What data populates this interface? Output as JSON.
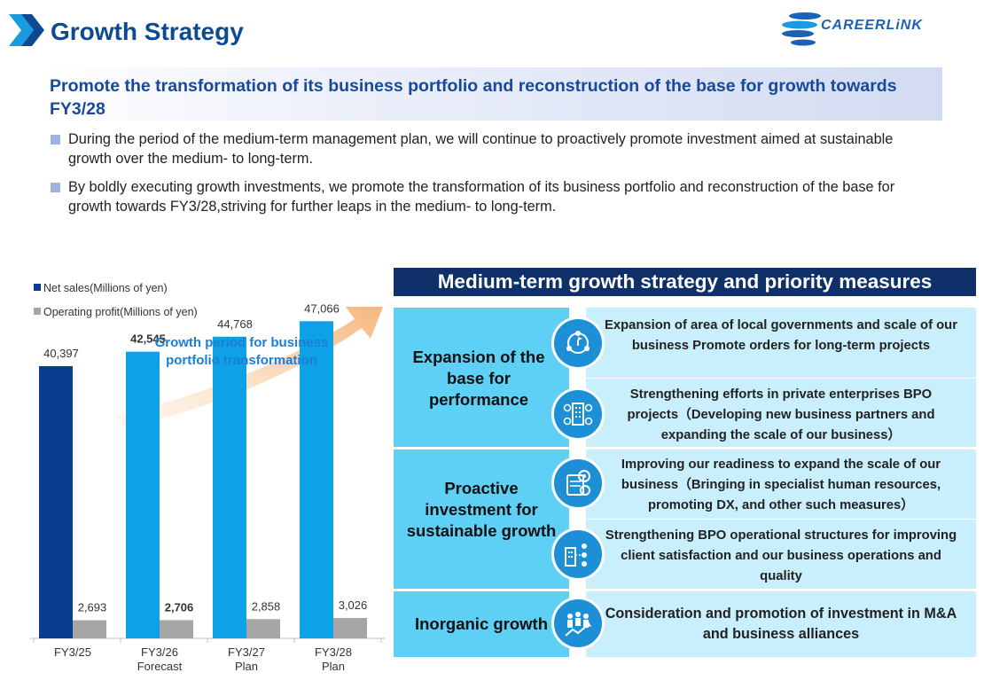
{
  "header": {
    "title": "Growth Strategy",
    "logo_text": "CAREERLiNK"
  },
  "subtitle": "Promote the transformation of its business portfolio and reconstruction of the base for growth towards FY3/28",
  "bullets": [
    "During the period of the medium-term management plan, we will continue to proactively promote investment aimed at sustainable growth over the medium- to long-term.",
    "By boldly executing growth investments, we promote the transformation of its business portfolio and reconstruction of the base for growth towards FY3/28,striving for further leaps in the medium- to long-term."
  ],
  "chart_data": {
    "type": "bar",
    "legend": [
      "Net sales(Millions of yen)",
      "Operating profit(Millions of yen)"
    ],
    "annotation": "Growth period for business portfolio transformation",
    "categories": [
      {
        "label": "FY3/25",
        "sub": ""
      },
      {
        "label": "FY3/26",
        "sub": "Forecast"
      },
      {
        "label": "FY3/27",
        "sub": "Plan"
      },
      {
        "label": "FY3/28",
        "sub": "Plan"
      }
    ],
    "series": [
      {
        "name": "Net sales(Millions of yen)",
        "values": [
          40397,
          42545,
          44768,
          47066
        ],
        "labels": [
          "40,397",
          "42,545",
          "44,768",
          "47,066"
        ]
      },
      {
        "name": "Operating profit(Millions of yen)",
        "values": [
          2693,
          2706,
          2858,
          3026
        ],
        "labels": [
          "2,693",
          "2,706",
          "2,858",
          "3,026"
        ]
      }
    ],
    "bold_index": 1,
    "ylim": [
      0,
      55000
    ],
    "colors": {
      "actual": "#0a3c8f",
      "plan": "#0ea1e6",
      "profit": "#a6a6a6"
    }
  },
  "strategy": {
    "header": "Medium-term growth strategy and priority measures",
    "groups": [
      {
        "title": "Expansion of the base for performance",
        "measures": [
          {
            "icon": "network-icon",
            "text": "Expansion of area of local governments and scale of our business Promote orders for long-term projects"
          },
          {
            "icon": "enterprise-icon",
            "text": "Strengthening  efforts in private enterprises BPO projects（Developing new business partners and expanding the scale of our business）"
          }
        ]
      },
      {
        "title": "Proactive investment for sustainable growth",
        "measures": [
          {
            "icon": "dx-gear-icon",
            "text": "Improving our readiness to expand the scale of our business（Bringing in specialist human resources, promoting DX, and other such measures）"
          },
          {
            "icon": "operations-icon",
            "text": "Strengthening BPO operational structures for improving client satisfaction and our business operations and quality"
          }
        ]
      },
      {
        "title": "Inorganic growth",
        "measures": [
          {
            "icon": "team-growth-icon",
            "text": "Consideration and promotion of investment in M&A and business alliances"
          }
        ]
      }
    ]
  }
}
